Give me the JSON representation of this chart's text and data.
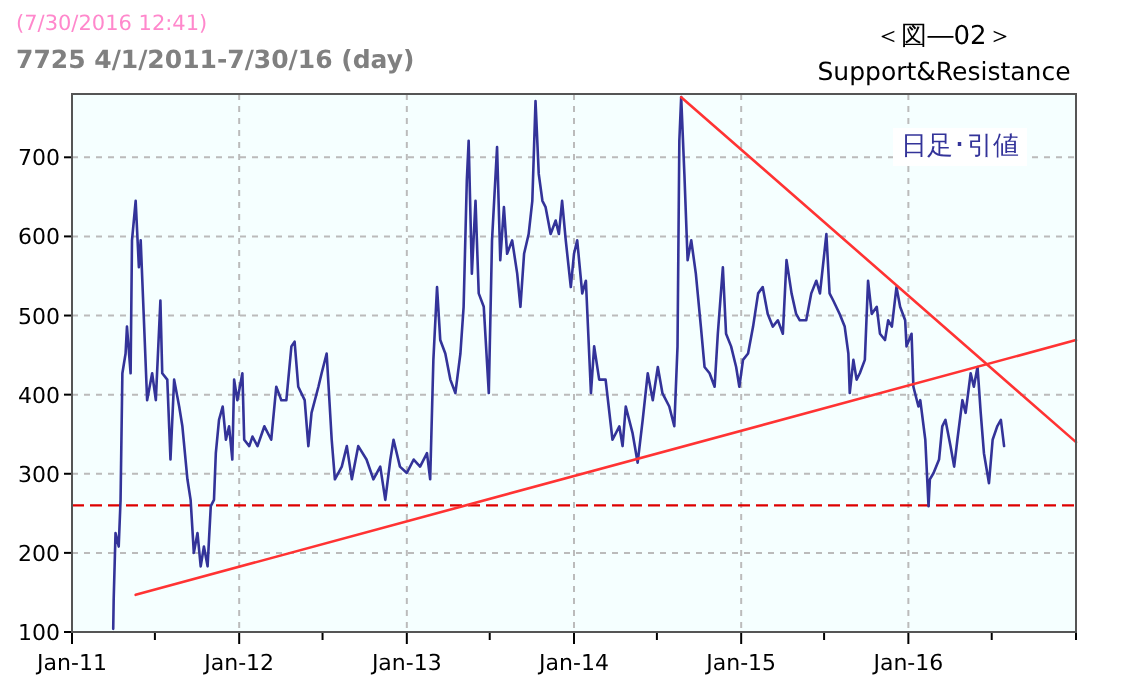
{
  "chart_data": {
    "type": "line",
    "title": "7725 4/1/2011-7/30/16 (day)",
    "subtitle": "(7/30/2016 12:41)",
    "annotations": [
      "＜図―02＞",
      "Support&Resistance",
      "日足･引値"
    ],
    "xlim": [
      "2011-01-01",
      "2017-01-01"
    ],
    "ylim": [
      100,
      780
    ],
    "xticks": [
      {
        "value": "2011-01-01",
        "label": "Jan-11"
      },
      {
        "value": "2011-07-01",
        "label": null
      },
      {
        "value": "2012-01-01",
        "label": "Jan-12"
      },
      {
        "value": "2012-07-01",
        "label": null
      },
      {
        "value": "2013-01-01",
        "label": "Jan-13"
      },
      {
        "value": "2013-07-01",
        "label": null
      },
      {
        "value": "2014-01-01",
        "label": "Jan-14"
      },
      {
        "value": "2014-07-01",
        "label": null
      },
      {
        "value": "2015-01-01",
        "label": "Jan-15"
      },
      {
        "value": "2015-07-01",
        "label": null
      },
      {
        "value": "2016-01-01",
        "label": "Jan-16"
      },
      {
        "value": "2016-07-01",
        "label": null
      },
      {
        "value": "2017-01-01",
        "label": null
      }
    ],
    "yticks": [
      100,
      200,
      300,
      400,
      500,
      600,
      700
    ],
    "grid": true,
    "ref_lines": [
      {
        "axis": "y",
        "value": 260,
        "label": null,
        "color": "#dd0000",
        "line_style": "dashed"
      }
    ],
    "series": [
      {
        "color": "#333399",
        "x": [
          "2011-04-01",
          "2011-04-02",
          "2011-04-06",
          "2011-04-13",
          "2011-04-17",
          "2011-04-21",
          "2011-04-28",
          "2011-05-01",
          "2011-05-09",
          "2011-05-12",
          "2011-05-20",
          "2011-05-27",
          "2011-05-31",
          "2011-06-07",
          "2011-06-14",
          "2011-06-25",
          "2011-07-03",
          "2011-07-13",
          "2011-07-17",
          "2011-07-28",
          "2011-08-04",
          "2011-08-12",
          "2011-08-23",
          "2011-08-30",
          "2011-09-10",
          "2011-09-17",
          "2011-09-24",
          "2011-10-02",
          "2011-10-09",
          "2011-10-16",
          "2011-10-24",
          "2011-10-31",
          "2011-11-07",
          "2011-11-11",
          "2011-11-18",
          "2011-11-26",
          "2011-12-03",
          "2011-12-10",
          "2011-12-17",
          "2011-12-21",
          "2011-12-28",
          "2012-01-08",
          "2012-01-12",
          "2012-01-23",
          "2012-01-30",
          "2012-02-10",
          "2012-02-25",
          "2012-03-11",
          "2012-03-22",
          "2012-04-02",
          "2012-04-13",
          "2012-04-24",
          "2012-05-01",
          "2012-05-09",
          "2012-05-23",
          "2012-05-31",
          "2012-06-07",
          "2012-06-22",
          "2012-06-29",
          "2012-07-10",
          "2012-07-21",
          "2012-07-28",
          "2012-08-12",
          "2012-08-23",
          "2012-09-03",
          "2012-09-17",
          "2012-10-05",
          "2012-10-20",
          "2012-11-04",
          "2012-11-15",
          "2012-11-26",
          "2012-12-03",
          "2012-12-17",
          "2013-01-01",
          "2013-01-16",
          "2013-01-30",
          "2013-02-14",
          "2013-02-21",
          "2013-02-28",
          "2013-03-08",
          "2013-03-15",
          "2013-03-26",
          "2013-04-06",
          "2013-04-17",
          "2013-04-28",
          "2013-05-05",
          "2013-05-12",
          "2013-05-16",
          "2013-05-23",
          "2013-05-31",
          "2013-06-07",
          "2013-06-18",
          "2013-06-29",
          "2013-07-06",
          "2013-07-17",
          "2013-07-24",
          "2013-08-01",
          "2013-08-08",
          "2013-08-19",
          "2013-08-30",
          "2013-09-06",
          "2013-09-14",
          "2013-09-24",
          "2013-10-02",
          "2013-10-09",
          "2013-10-16",
          "2013-10-24",
          "2013-10-31",
          "2013-11-11",
          "2013-11-22",
          "2013-11-29",
          "2013-12-06",
          "2013-12-14",
          "2013-12-25",
          "2014-01-01",
          "2014-01-08",
          "2014-01-19",
          "2014-01-27",
          "2014-02-07",
          "2014-02-14",
          "2014-02-25",
          "2014-03-11",
          "2014-03-26",
          "2014-04-10",
          "2014-04-17",
          "2014-04-24",
          "2014-05-09",
          "2014-05-20",
          "2014-05-31",
          "2014-06-11",
          "2014-06-22",
          "2014-07-03",
          "2014-07-13",
          "2014-07-28",
          "2014-08-08",
          "2014-08-15",
          "2014-08-19",
          "2014-08-23",
          "2014-08-30",
          "2014-09-06",
          "2014-09-14",
          "2014-09-24",
          "2014-10-05",
          "2014-10-13",
          "2014-10-24",
          "2014-11-04",
          "2014-11-11",
          "2014-11-22",
          "2014-11-29",
          "2014-12-10",
          "2014-12-21",
          "2014-12-28",
          "2015-01-05",
          "2015-01-16",
          "2015-01-27",
          "2015-02-07",
          "2015-02-17",
          "2015-02-28",
          "2015-03-11",
          "2015-03-22",
          "2015-04-02",
          "2015-04-10",
          "2015-04-21",
          "2015-05-01",
          "2015-05-09",
          "2015-05-23",
          "2015-06-03",
          "2015-06-14",
          "2015-06-22",
          "2015-07-06",
          "2015-07-13",
          "2015-07-21",
          "2015-08-04",
          "2015-08-15",
          "2015-08-23",
          "2015-08-26",
          "2015-09-03",
          "2015-09-10",
          "2015-09-17",
          "2015-09-28",
          "2015-10-05",
          "2015-10-13",
          "2015-10-24",
          "2015-10-31",
          "2015-11-11",
          "2015-11-18",
          "2015-11-26",
          "2015-12-06",
          "2015-12-14",
          "2015-12-25",
          "2015-12-28",
          "2016-01-08",
          "2016-01-12",
          "2016-01-23",
          "2016-01-27",
          "2016-02-07",
          "2016-02-14",
          "2016-02-17",
          "2016-02-25",
          "2016-03-08",
          "2016-03-15",
          "2016-03-22",
          "2016-04-02",
          "2016-04-10",
          "2016-04-17",
          "2016-04-28",
          "2016-05-05",
          "2016-05-16",
          "2016-05-23",
          "2016-05-31",
          "2016-06-07",
          "2016-06-14",
          "2016-06-25",
          "2016-07-03",
          "2016-07-13",
          "2016-07-21",
          "2016-07-28"
        ],
        "values": [
          104,
          141,
          225,
          208,
          267,
          427,
          452,
          486,
          427,
          595,
          645,
          561,
          595,
          494,
          393,
          427,
          393,
          519,
          427,
          419,
          318,
          419,
          385,
          360,
          293,
          267,
          200,
          225,
          183,
          208,
          183,
          259,
          267,
          326,
          368,
          385,
          343,
          360,
          318,
          419,
          393,
          427,
          343,
          335,
          347,
          335,
          360,
          343,
          410,
          393,
          393,
          461,
          467,
          410,
          393,
          335,
          377,
          410,
          427,
          452,
          343,
          293,
          309,
          335,
          293,
          335,
          318,
          293,
          309,
          267,
          318,
          343,
          309,
          301,
          318,
          309,
          326,
          293,
          444,
          536,
          469,
          452,
          419,
          402,
          452,
          511,
          671,
          721,
          553,
          645,
          528,
          511,
          402,
          595,
          713,
          570,
          637,
          578,
          595,
          553,
          511,
          578,
          603,
          645,
          771,
          679,
          645,
          637,
          603,
          620,
          603,
          645,
          595,
          536,
          578,
          595,
          528,
          544,
          402,
          461,
          419,
          419,
          343,
          360,
          335,
          385,
          351,
          314,
          368,
          427,
          393,
          435,
          402,
          385,
          360,
          461,
          721,
          776,
          679,
          570,
          595,
          553,
          486,
          435,
          427,
          410,
          477,
          561,
          477,
          461,
          435,
          410,
          444,
          452,
          486,
          528,
          536,
          502,
          486,
          494,
          477,
          570,
          528,
          502,
          494,
          494,
          528,
          544,
          528,
          603,
          528,
          519,
          502,
          486,
          452,
          402,
          444,
          419,
          427,
          444,
          544,
          502,
          511,
          477,
          469,
          494,
          486,
          536,
          511,
          494,
          461,
          477,
          410,
          385,
          393,
          343,
          259,
          293,
          301,
          318,
          360,
          368,
          335,
          309,
          343,
          393,
          377,
          427,
          410,
          435,
          377,
          326,
          288,
          343,
          360,
          368,
          335
        ]
      },
      {
        "color": "#ff3333",
        "x": [
          "2011-05-20",
          "2017-01-01"
        ],
        "values": [
          147,
          469
        ]
      },
      {
        "color": "#ff3333",
        "x": [
          "2014-08-23",
          "2017-01-01"
        ],
        "values": [
          776,
          340
        ]
      }
    ]
  }
}
